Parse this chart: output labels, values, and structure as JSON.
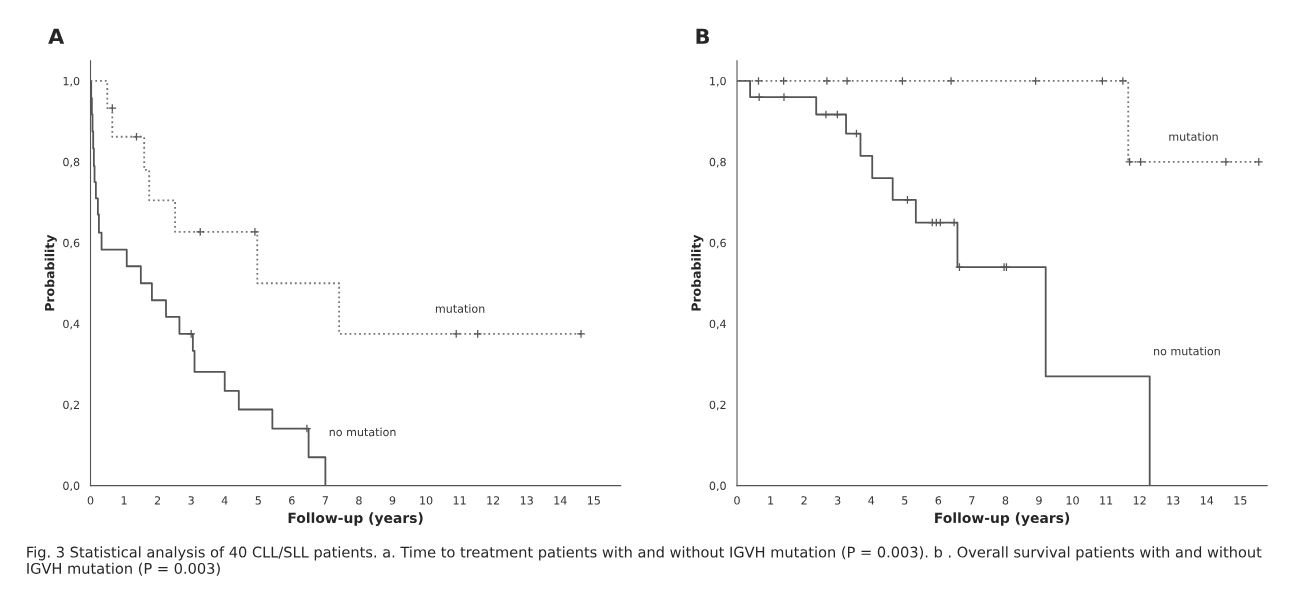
{
  "chart_data": [
    {
      "type": "step",
      "title": "A",
      "xlabel": "Follow-up (years)",
      "ylabel": "Probability",
      "xlim": [
        0,
        15.8
      ],
      "ylim": [
        0,
        1.05
      ],
      "xticks": [
        0,
        1,
        2,
        3,
        4,
        5,
        6,
        7,
        8,
        9,
        10,
        11,
        12,
        13,
        14,
        15
      ],
      "yticks": [
        {
          "value": 0,
          "label": "0,0"
        },
        {
          "value": 0.2,
          "label": "0,2"
        },
        {
          "value": 0.4,
          "label": "0,4"
        },
        {
          "value": 0.6,
          "label": "0,6"
        },
        {
          "value": 0.8,
          "label": "0,8"
        },
        {
          "value": 1.0,
          "label": "1,0"
        }
      ],
      "grid": false,
      "series": [
        {
          "name": "no mutation",
          "color": "#555555",
          "line_style": "solid",
          "x": [
            0,
            0.02,
            0.04,
            0.06,
            0.08,
            0.1,
            0.12,
            0.16,
            0.22,
            0.25,
            0.33,
            1.08,
            1.5,
            1.83,
            2.25,
            2.65,
            3.05,
            3.1,
            4.0,
            4.42,
            5.42,
            6.5,
            7.0
          ],
          "values": [
            1.0,
            0.958,
            0.917,
            0.875,
            0.833,
            0.79,
            0.75,
            0.71,
            0.67,
            0.625,
            0.583,
            0.542,
            0.5,
            0.458,
            0.417,
            0.375,
            0.333,
            0.281,
            0.234,
            0.188,
            0.141,
            0.07,
            0.0
          ]
        },
        {
          "type": "scatter",
          "color": "#555555",
          "marker": "cross",
          "x": [
            3.0,
            6.45
          ],
          "values": [
            0.375,
            0.141
          ]
        },
        {
          "name": "mutation",
          "color": "#777777",
          "line_style": "dotted",
          "x": [
            0,
            0.5,
            0.65,
            1.6,
            1.75,
            2.52,
            4.97,
            7.41,
            14.62
          ],
          "values": [
            1.0,
            0.933,
            0.862,
            0.78,
            0.705,
            0.627,
            0.5,
            0.375,
            0.375
          ]
        },
        {
          "type": "scatter",
          "color": "#555555",
          "marker": "cross",
          "x": [
            0.65,
            1.37,
            3.27,
            4.9,
            10.9,
            11.54,
            14.62
          ],
          "values": [
            0.933,
            0.862,
            0.627,
            0.627,
            0.375,
            0.375,
            0.375
          ]
        }
      ],
      "annotations": [
        "Fig. 3 Statistical analysis of 40 CLL/SLL patients. a. Time to treatment patients with and without IGVH mutation (P = 0.003). b . Overall survival patients with and without IGVH mutation (P = 0.003)"
      ]
    },
    {
      "type": "step",
      "title": "B",
      "xlabel": "Follow-up (years)",
      "ylabel": "Probability",
      "xlim": [
        0,
        15.8
      ],
      "ylim": [
        0,
        1.05
      ],
      "xticks": [
        0,
        1,
        2,
        3,
        4,
        5,
        6,
        7,
        8,
        9,
        10,
        11,
        12,
        13,
        14,
        15
      ],
      "yticks": [
        {
          "value": 0,
          "label": "0,0"
        },
        {
          "value": 0.2,
          "label": "0,2"
        },
        {
          "value": 0.4,
          "label": "0,4"
        },
        {
          "value": 0.6,
          "label": "0,6"
        },
        {
          "value": 0.8,
          "label": "0,8"
        },
        {
          "value": 1.0,
          "label": "1,0"
        }
      ],
      "grid": false,
      "series": [
        {
          "name": "no mutation",
          "color": "#555555",
          "line_style": "solid",
          "x": [
            0,
            0.39,
            2.36,
            3.25,
            3.68,
            4.03,
            4.64,
            5.33,
            6.57,
            9.2,
            12.3
          ],
          "values": [
            1.0,
            0.96,
            0.917,
            0.87,
            0.815,
            0.76,
            0.706,
            0.65,
            0.54,
            0.27,
            0.0
          ]
        },
        {
          "type": "scatter",
          "color": "#555555",
          "marker": "cross",
          "x": [
            0.66,
            1.4,
            2.65,
            2.99,
            3.56,
            5.08,
            5.82,
            5.94,
            6.06,
            6.47,
            6.63,
            7.96,
            8.03
          ],
          "values": [
            0.96,
            0.96,
            0.917,
            0.917,
            0.87,
            0.706,
            0.65,
            0.65,
            0.65,
            0.65,
            0.54,
            0.54,
            0.54
          ]
        },
        {
          "name": "mutation",
          "color": "#777777",
          "line_style": "dotted",
          "x": [
            0,
            11.66,
            15.55
          ],
          "values": [
            1.0,
            0.8,
            0.8
          ]
        },
        {
          "type": "scatter",
          "color": "#555555",
          "marker": "cross",
          "x": [
            0.64,
            1.39,
            2.68,
            3.28,
            4.93,
            6.38,
            8.9,
            10.89,
            11.5,
            11.7,
            12.03,
            14.57,
            15.55
          ],
          "values": [
            1.0,
            1.0,
            1.0,
            1.0,
            1.0,
            1.0,
            1.0,
            1.0,
            1.0,
            0.8,
            0.8,
            0.8,
            0.8
          ]
        }
      ]
    }
  ]
}
